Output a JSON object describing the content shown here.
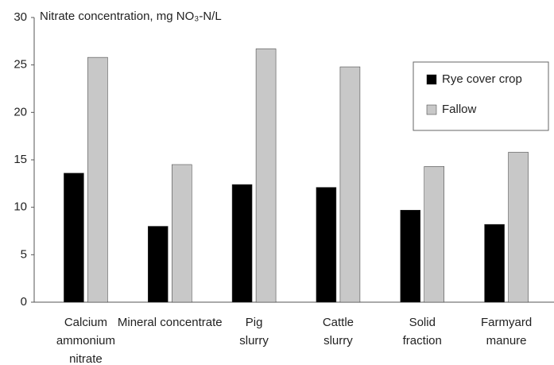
{
  "chart_data": {
    "type": "bar",
    "title": "Nitrate concentration, mg NO₃-N/L",
    "categories": [
      "Calcium\nammonium\nnitrate",
      "Mineral concentrate",
      "Pig\nslurry",
      "Cattle\nslurry",
      "Solid\nfraction",
      "Farmyard\nmanure"
    ],
    "series": [
      {
        "name": "Rye cover crop",
        "color": "#000000",
        "values": [
          13.6,
          8.0,
          12.4,
          12.1,
          9.7,
          8.2
        ]
      },
      {
        "name": "Fallow",
        "color": "#c8c8c8",
        "values": [
          25.8,
          14.5,
          26.7,
          24.8,
          14.3,
          15.8
        ]
      }
    ],
    "ylim": [
      0,
      30
    ],
    "yticks": [
      0,
      5,
      10,
      15,
      20,
      25,
      30
    ],
    "grid": false,
    "legend": "right"
  }
}
